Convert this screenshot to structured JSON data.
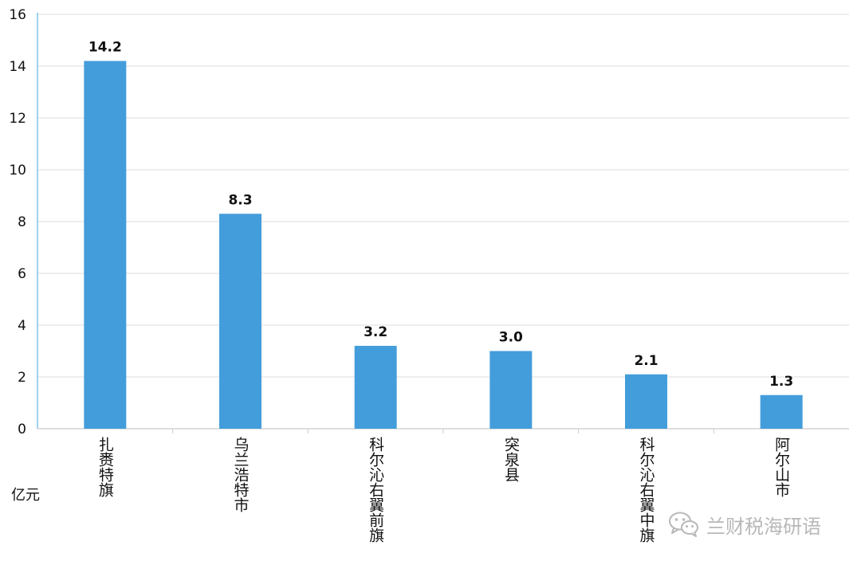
{
  "chart_data": {
    "type": "bar",
    "categories": [
      "扎赉特旗",
      "乌兰浩特市",
      "科尔沁右翼前旗",
      "突泉县",
      "科尔沁右翼中旗",
      "阿尔山市"
    ],
    "values": [
      14.2,
      8.3,
      3.2,
      3.0,
      2.1,
      1.3
    ],
    "data_labels": [
      "14.2",
      "8.3",
      "3.2",
      "3.0",
      "2.1",
      "1.3"
    ],
    "ylim": [
      0,
      16
    ],
    "yticks": [
      0,
      2,
      4,
      6,
      8,
      10,
      12,
      14,
      16
    ],
    "ylabel": "亿元",
    "grid": true,
    "bar_color": "#449ddb",
    "axis_color": "#7fc3e8"
  },
  "watermark": {
    "text": "兰财税海研语",
    "icon": "wechat-icon"
  }
}
